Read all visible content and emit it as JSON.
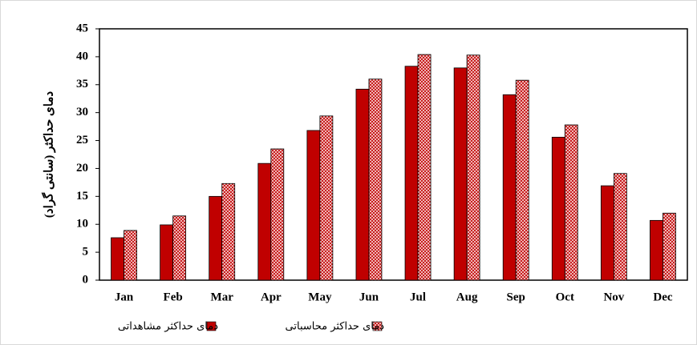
{
  "chart_data": {
    "type": "bar",
    "y_label": "دمای حداکثر (سانتی گراد)",
    "categories": [
      "Jan",
      "Feb",
      "Mar",
      "Apr",
      "May",
      "Jun",
      "Jul",
      "Aug",
      "Sep",
      "Oct",
      "Nov",
      "Dec"
    ],
    "series": [
      {
        "name": "دمای حداکثر مشاهداتی",
        "color": "#c00000",
        "hatch": false,
        "values": [
          7.6,
          9.9,
          15.0,
          20.9,
          26.8,
          34.2,
          38.3,
          38.0,
          33.2,
          25.6,
          16.9,
          10.7
        ]
      },
      {
        "name": "دمای حداکثر محاسباتی",
        "color": "#c00000",
        "hatch": true,
        "values": [
          8.9,
          11.5,
          17.3,
          23.5,
          29.4,
          36.0,
          40.4,
          40.3,
          35.8,
          27.8,
          19.1,
          12.0
        ]
      }
    ],
    "ylim": [
      0,
      45
    ],
    "yticks": [
      0,
      5,
      10,
      15,
      20,
      25,
      30,
      35,
      40,
      45
    ],
    "grid": false
  }
}
